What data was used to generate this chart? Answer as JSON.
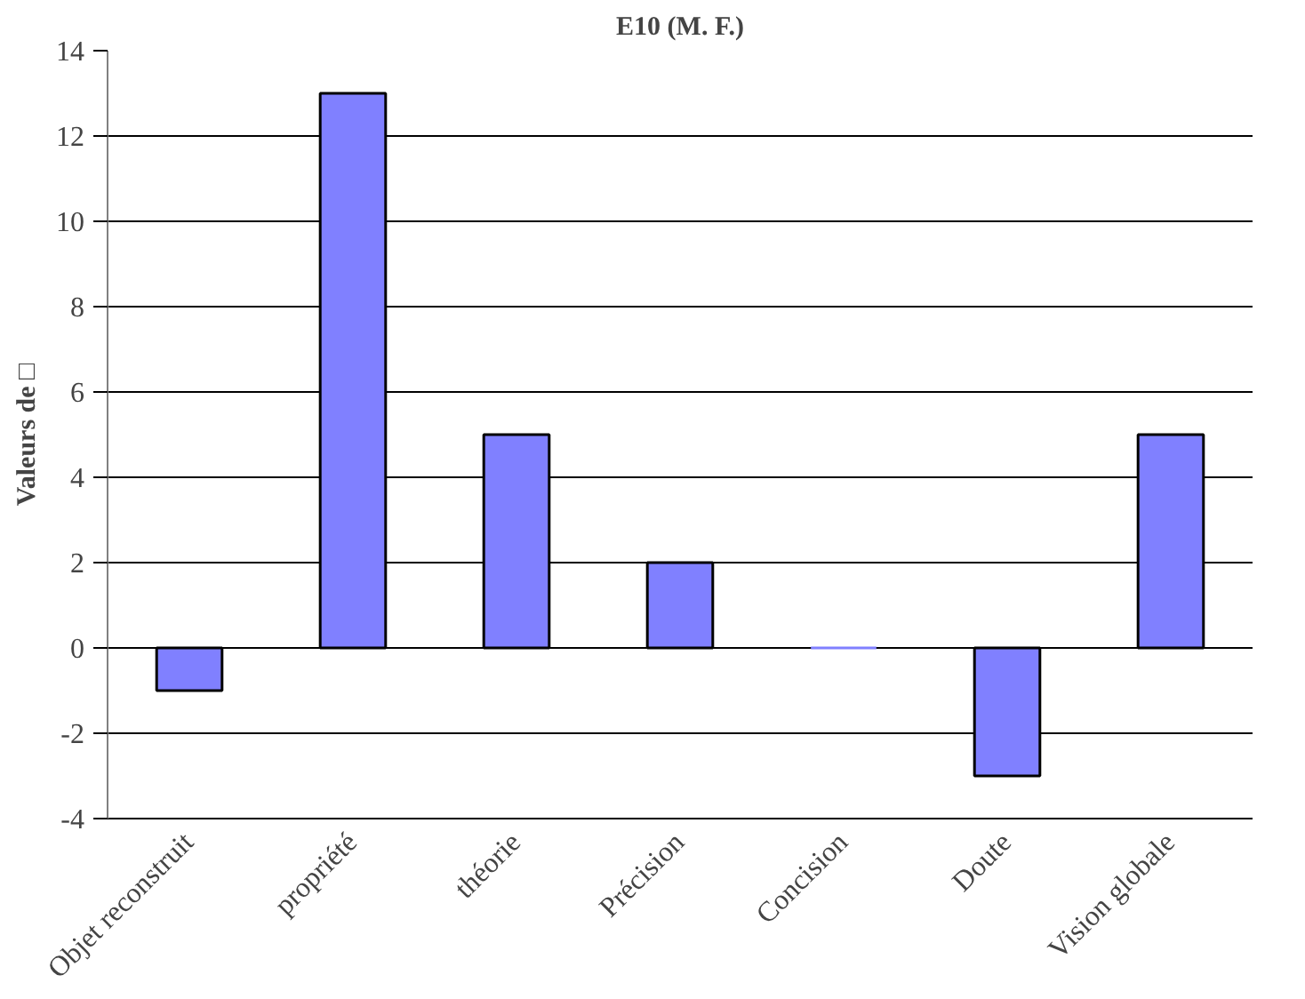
{
  "chart_data": {
    "type": "bar",
    "title": "E10 (M. F.)",
    "ylabel": "Valeurs de □",
    "categories": [
      "Objet reconstruit",
      "propriété",
      "théorie",
      "Précision",
      "Concision",
      "Doute",
      "Vision globale"
    ],
    "values": [
      -1,
      13,
      5,
      2,
      0,
      -3,
      5
    ],
    "color": "#8080ff",
    "ylim": [
      -4,
      14
    ],
    "yticks": [
      -4,
      -2,
      0,
      2,
      4,
      6,
      8,
      10,
      12,
      14
    ],
    "grid": "y"
  }
}
